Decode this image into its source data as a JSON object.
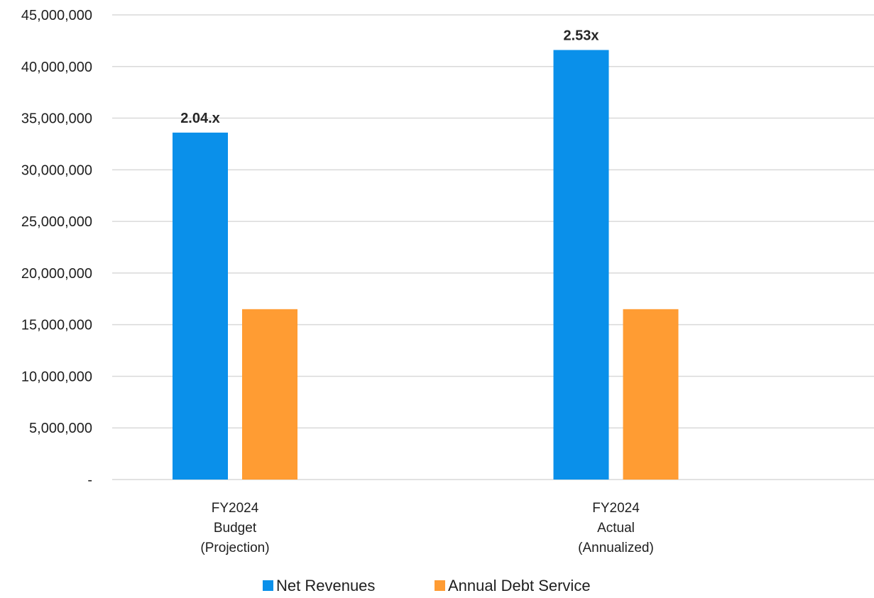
{
  "chart_data": {
    "type": "bar",
    "categories": [
      [
        "FY2024",
        "Budget",
        "(Projection)"
      ],
      [
        "FY2024",
        "Actual",
        "(Annualized)"
      ]
    ],
    "series": [
      {
        "name": "Net Revenues",
        "color": "#0a90ea",
        "values": [
          33600000,
          41600000
        ],
        "data_labels": [
          "2.04.x",
          "2.53x"
        ]
      },
      {
        "name": "Annual Debt Service",
        "color": "#ff9c33",
        "values": [
          16500000,
          16500000
        ],
        "data_labels": [
          "",
          ""
        ]
      }
    ],
    "y_ticks": [
      0,
      5000000,
      10000000,
      15000000,
      20000000,
      25000000,
      30000000,
      35000000,
      40000000,
      45000000
    ],
    "y_tick_labels": [
      "-",
      "5,000,000",
      "10,000,000",
      "15,000,000",
      "20,000,000",
      "25,000,000",
      "30,000,000",
      "35,000,000",
      "40,000,000",
      "45,000,000"
    ],
    "ylim": [
      0,
      45000000
    ],
    "title": "",
    "xlabel": "",
    "ylabel": "",
    "grid": true,
    "gridline_color": "#d9d9d9",
    "legend_position": "bottom"
  }
}
